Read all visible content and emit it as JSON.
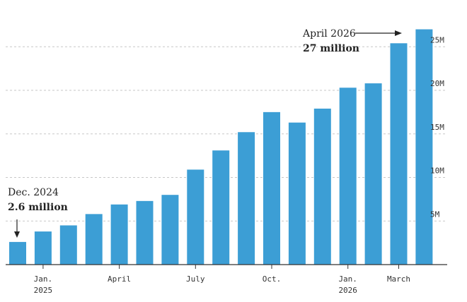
{
  "chart_data": {
    "type": "bar",
    "title": "",
    "xlabel": "",
    "ylabel": "",
    "ylim": [
      0,
      28
    ],
    "y_unit": "million",
    "y_ticks": [
      {
        "value": 5,
        "label": "5M"
      },
      {
        "value": 10,
        "label": "10M"
      },
      {
        "value": 15,
        "label": "15M"
      },
      {
        "value": 20,
        "label": "20M"
      },
      {
        "value": 25,
        "label": "25M"
      }
    ],
    "categories": [
      "Dec 2024",
      "Jan 2025",
      "Feb 2025",
      "Mar 2025",
      "Apr 2025",
      "May 2025",
      "Jun 2025",
      "Jul 2025",
      "Aug 2025",
      "Sep 2025",
      "Oct 2025",
      "Nov 2025",
      "Dec 2025",
      "Jan 2026",
      "Feb 2026",
      "Mar 2026",
      "Apr 2026"
    ],
    "values": [
      2.6,
      3.8,
      4.5,
      5.8,
      6.9,
      7.3,
      8.0,
      10.9,
      13.1,
      15.2,
      17.5,
      16.3,
      17.9,
      20.3,
      20.8,
      25.4,
      27.0
    ],
    "x_ticks": [
      {
        "index": 1,
        "label": "Jan.",
        "sublabel": "2025"
      },
      {
        "index": 4,
        "label": "April",
        "sublabel": ""
      },
      {
        "index": 7,
        "label": "July",
        "sublabel": ""
      },
      {
        "index": 10,
        "label": "Oct.",
        "sublabel": ""
      },
      {
        "index": 13,
        "label": "Jan.",
        "sublabel": "2026"
      },
      {
        "index": 15,
        "label": "March",
        "sublabel": ""
      }
    ],
    "annotations": [
      {
        "index": 0,
        "title": "Dec. 2024",
        "value_label": "2.6 million"
      },
      {
        "index": 16,
        "title": "April 2026",
        "value_label": "27 million"
      }
    ],
    "grid": true,
    "bar_color": "#3c9ed5",
    "grid_color": "#c7c7c7",
    "axis_color": "#333333"
  }
}
